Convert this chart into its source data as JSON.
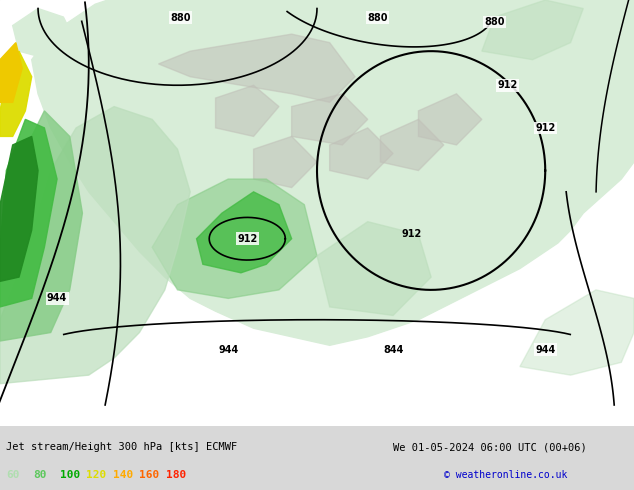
{
  "title_left": "Jet stream/Height 300 hPa [kts] ECMWF",
  "title_right": "We 01-05-2024 06:00 UTC (00+06)",
  "copyright": "© weatheronline.co.uk",
  "legend_values": [
    60,
    80,
    100,
    120,
    140,
    160,
    180
  ],
  "legend_colors": [
    "#b0deb0",
    "#5cc85c",
    "#00aa00",
    "#dddd00",
    "#ffaa00",
    "#ff6600",
    "#ff2200"
  ],
  "map_bg": "#ffffff",
  "land_color": "#d8edd8",
  "ocean_color": "#ffffff",
  "gray_land_color": "#c0c0b8",
  "contour_color": "#000000",
  "bottom_bar_color": "#d8d8d8",
  "fig_width": 6.34,
  "fig_height": 4.9,
  "dpi": 100,
  "jet_colors": {
    "dark_green": "#228B22",
    "medium_green": "#44BB44",
    "light_green": "#88CC88",
    "very_light_green": "#BBDDBB",
    "yellow": "#DDDD00",
    "gold": "#EEC900"
  }
}
